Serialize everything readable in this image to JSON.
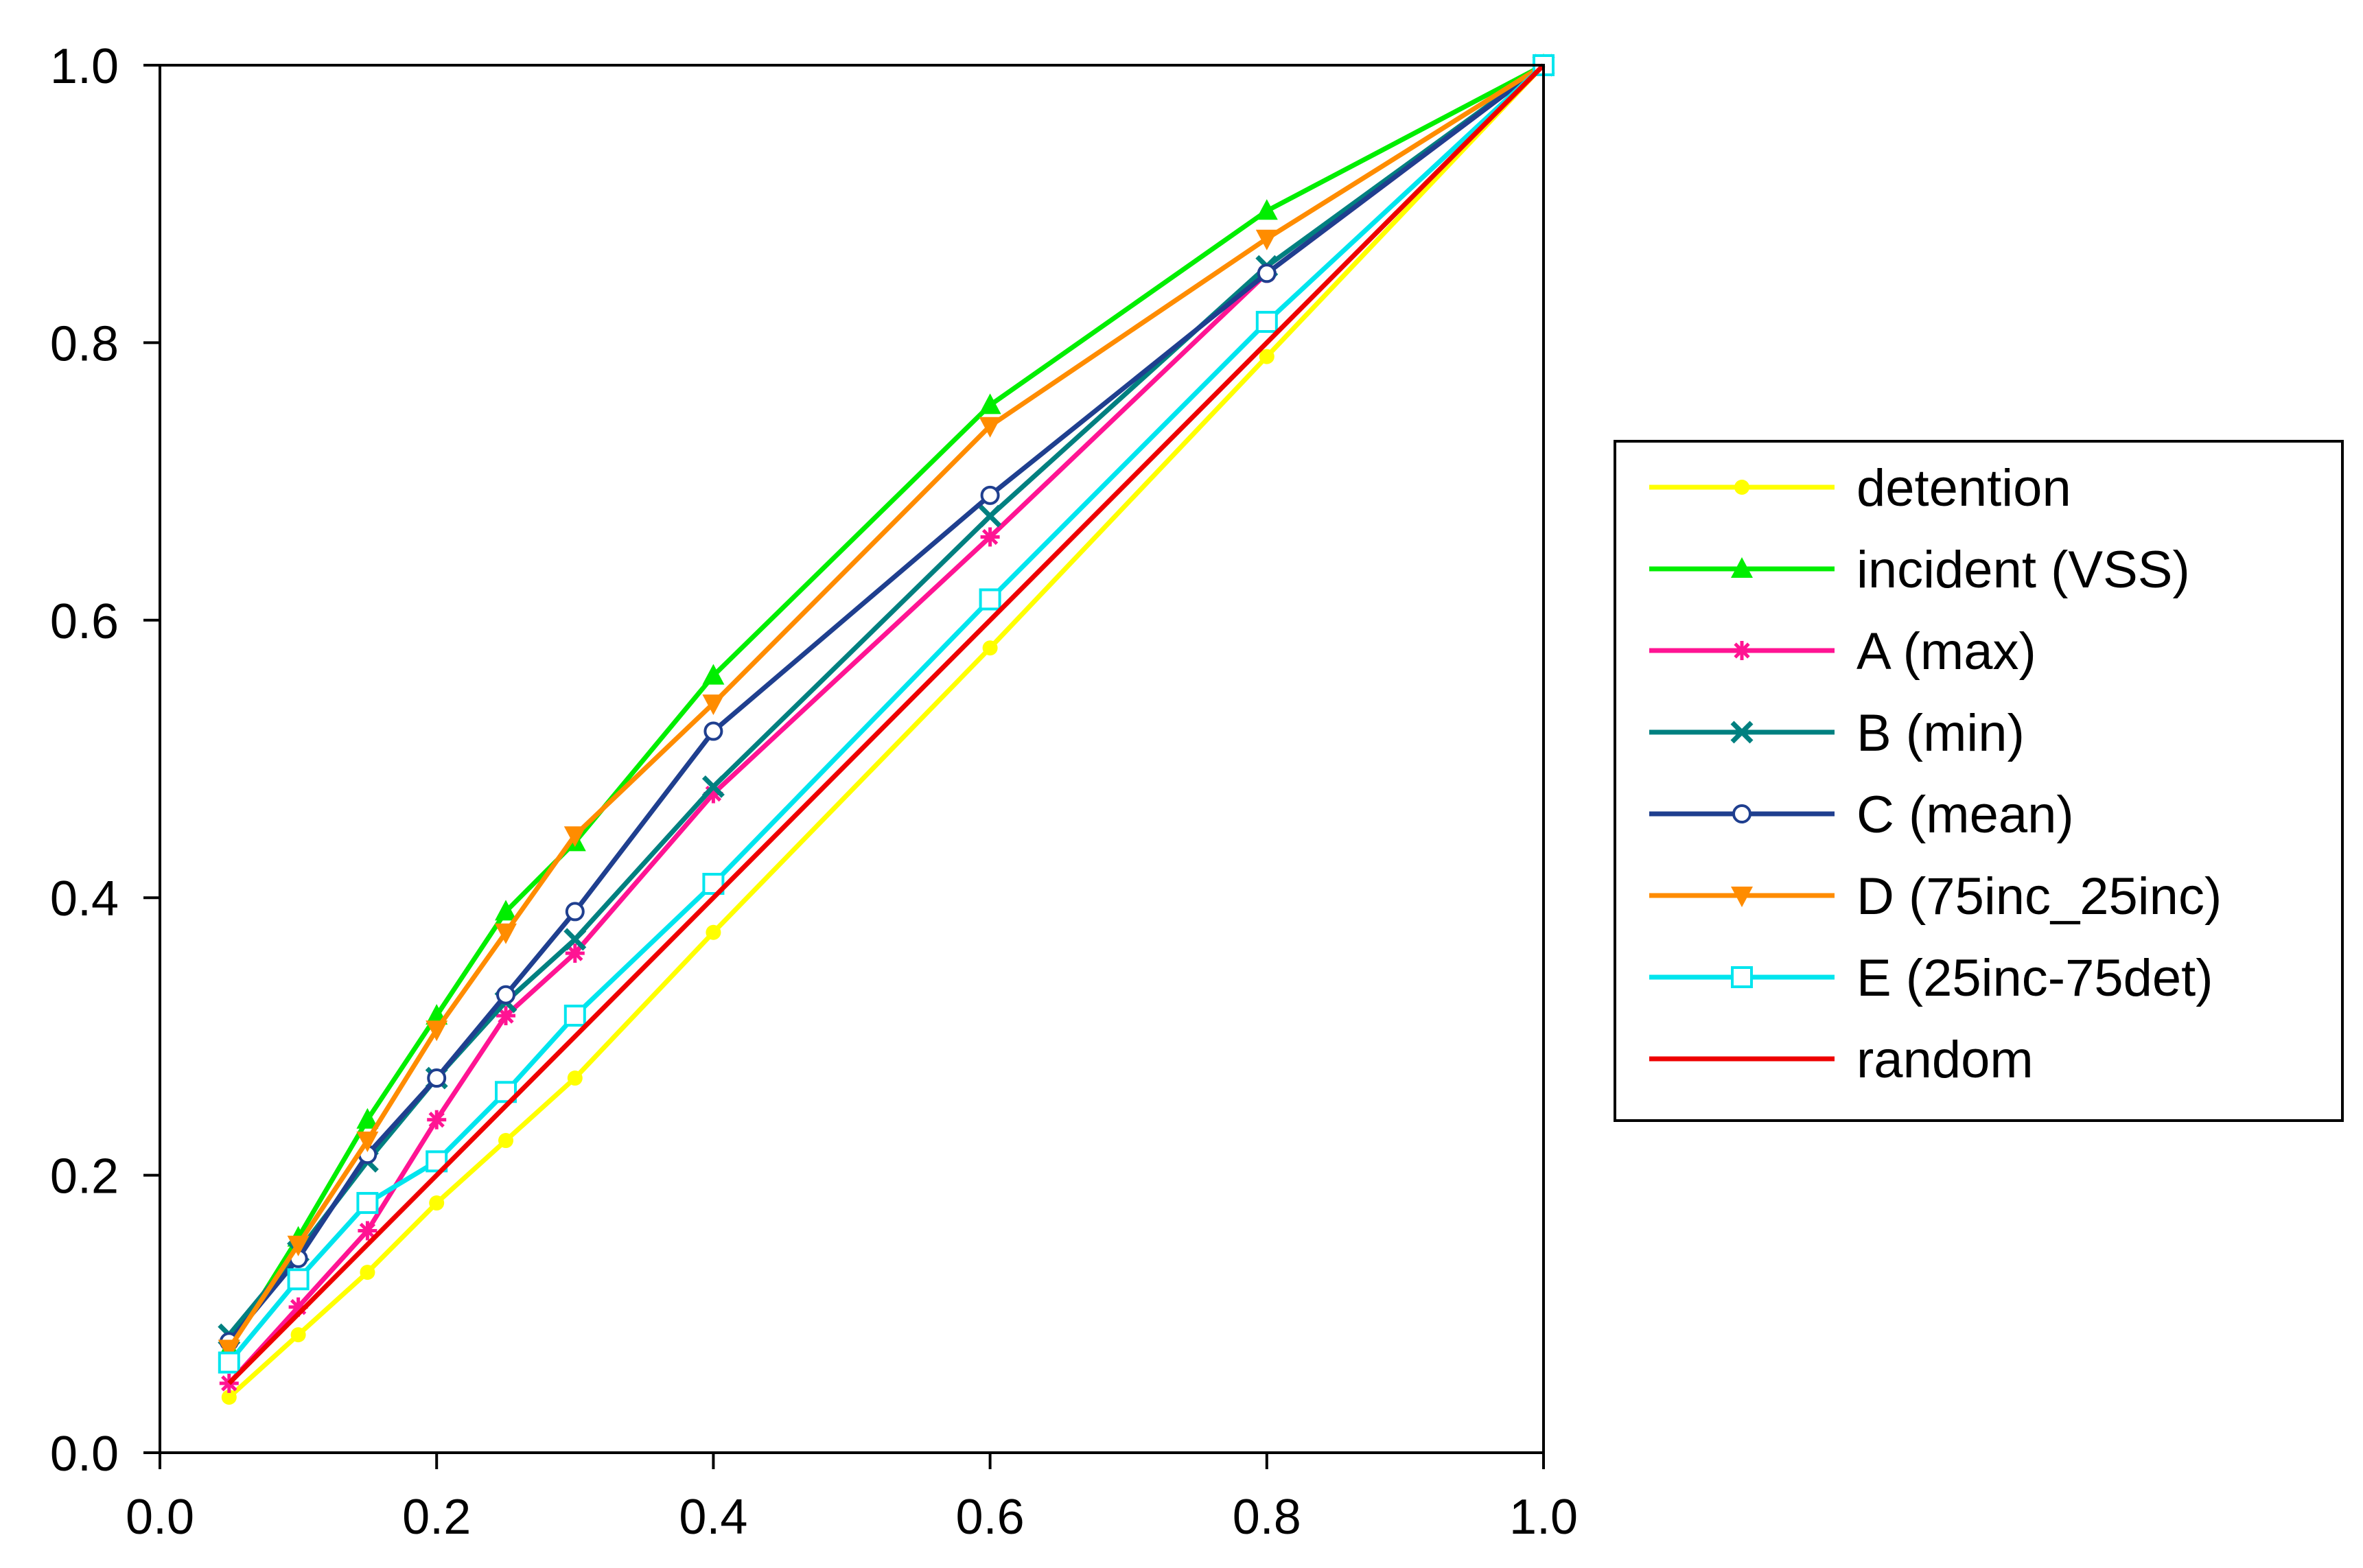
{
  "chart_data": {
    "type": "line",
    "title": "",
    "xlabel": "",
    "ylabel": "",
    "xlim": [
      0,
      1
    ],
    "ylim": [
      0,
      1
    ],
    "x_ticks": [
      "0.0",
      "0.2",
      "0.4",
      "0.6",
      "0.8",
      "1.0"
    ],
    "y_ticks": [
      "0.0",
      "0.2",
      "0.4",
      "0.6",
      "0.8",
      "1.0"
    ],
    "grid": false,
    "legend_position": "right",
    "series": [
      {
        "name": "detention",
        "color": "#ffff00",
        "marker": "dot",
        "x": [
          0.05,
          0.1,
          0.15,
          0.2,
          0.25,
          0.3,
          0.4,
          0.6,
          0.8,
          1.0
        ],
        "y": [
          0.04,
          0.085,
          0.13,
          0.18,
          0.225,
          0.27,
          0.375,
          0.58,
          0.79,
          1.0
        ]
      },
      {
        "name": "incident (VSS)",
        "color": "#00ee00",
        "marker": "triangle-up",
        "x": [
          0.05,
          0.1,
          0.15,
          0.2,
          0.25,
          0.3,
          0.4,
          0.6,
          0.8,
          1.0
        ],
        "y": [
          0.075,
          0.155,
          0.24,
          0.315,
          0.39,
          0.44,
          0.56,
          0.755,
          0.895,
          1.0
        ]
      },
      {
        "name": "A (max)",
        "color": "#ff1493",
        "marker": "asterisk",
        "x": [
          0.05,
          0.1,
          0.15,
          0.2,
          0.25,
          0.3,
          0.4,
          0.6,
          0.8,
          1.0
        ],
        "y": [
          0.05,
          0.105,
          0.16,
          0.24,
          0.315,
          0.36,
          0.475,
          0.66,
          0.85,
          1.0
        ]
      },
      {
        "name": "B (min)",
        "color": "#008080",
        "marker": "x",
        "x": [
          0.05,
          0.1,
          0.15,
          0.2,
          0.25,
          0.3,
          0.4,
          0.6,
          0.8,
          1.0
        ],
        "y": [
          0.085,
          0.145,
          0.21,
          0.27,
          0.325,
          0.37,
          0.48,
          0.675,
          0.855,
          1.0
        ]
      },
      {
        "name": "C (mean)",
        "color": "#1f3f8f",
        "marker": "circle-open",
        "x": [
          0.05,
          0.1,
          0.15,
          0.2,
          0.25,
          0.3,
          0.4,
          0.6,
          0.8,
          1.0
        ],
        "y": [
          0.08,
          0.14,
          0.215,
          0.27,
          0.33,
          0.39,
          0.52,
          0.69,
          0.85,
          1.0
        ]
      },
      {
        "name": "D (75inc_25inc)",
        "color": "#ff8c00",
        "marker": "triangle-down",
        "x": [
          0.05,
          0.1,
          0.15,
          0.2,
          0.25,
          0.3,
          0.4,
          0.6,
          0.8,
          1.0
        ],
        "y": [
          0.075,
          0.15,
          0.225,
          0.305,
          0.375,
          0.445,
          0.54,
          0.74,
          0.875,
          1.0
        ]
      },
      {
        "name": "E (25inc-75det)",
        "color": "#00e5ee",
        "marker": "square-open",
        "x": [
          0.05,
          0.1,
          0.15,
          0.2,
          0.25,
          0.3,
          0.4,
          0.6,
          0.8,
          1.0
        ],
        "y": [
          0.065,
          0.125,
          0.18,
          0.21,
          0.26,
          0.315,
          0.41,
          0.615,
          0.815,
          1.0
        ]
      },
      {
        "name": "random",
        "color": "#ee0000",
        "marker": "none",
        "x": [
          0.05,
          1.0
        ],
        "y": [
          0.05,
          1.0
        ]
      }
    ]
  }
}
